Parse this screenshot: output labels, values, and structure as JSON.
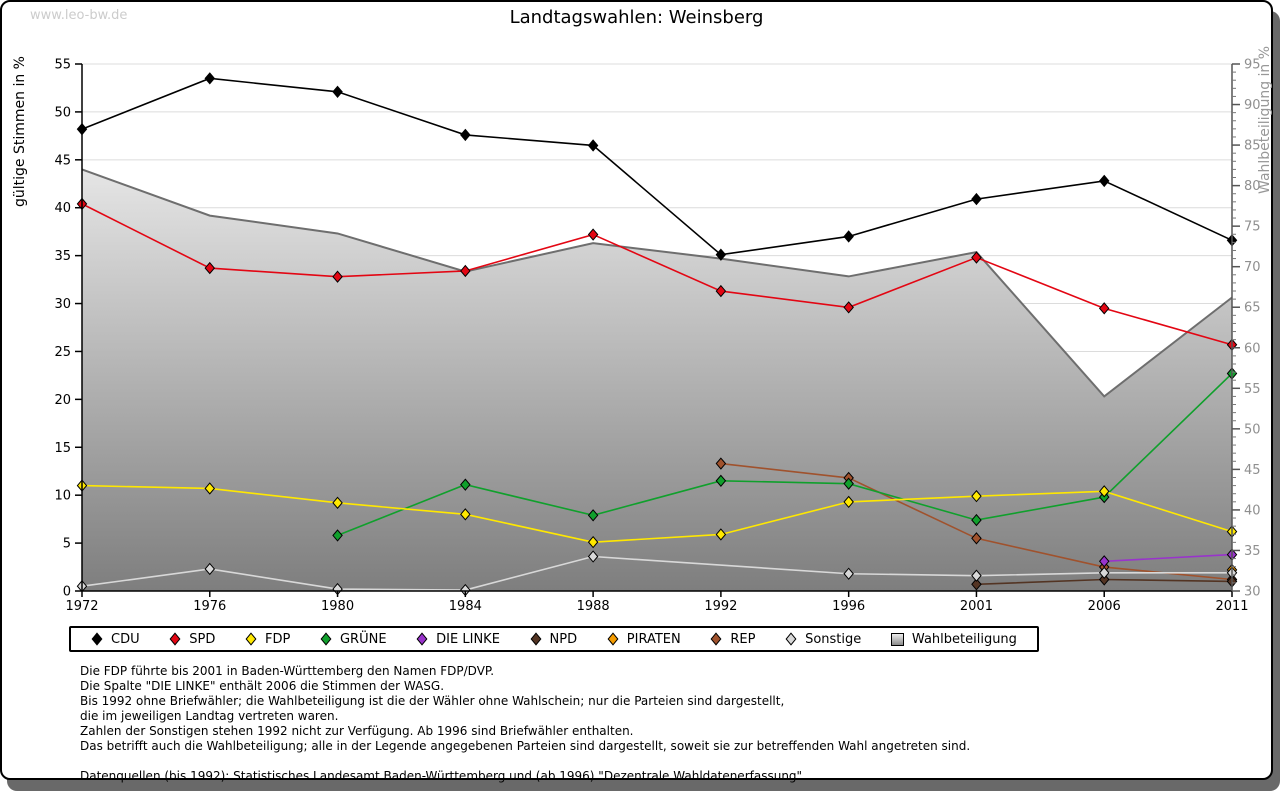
{
  "watermark": "www.leo-bw.de",
  "title": "Landtagswahlen: Weinsberg",
  "chart_data": {
    "type": "line",
    "title": "Landtagswahlen: Weinsberg",
    "categories": [
      "1972",
      "1976",
      "1980",
      "1984",
      "1988",
      "1992",
      "1996",
      "2001",
      "2006",
      "2011"
    ],
    "left_axis": {
      "label": "gültige Stimmen in %",
      "min": 0,
      "max": 55,
      "tick_step": 5
    },
    "right_axis": {
      "label": "Wahlbeteiligung in %",
      "min": 30,
      "max": 95,
      "tick_step": 5,
      "minor_tick_step": 1
    },
    "grid": "horizontal",
    "legend_position": "bottom",
    "series": [
      {
        "name": "CDU",
        "color": "#000000",
        "axis": "left",
        "values": [
          48.2,
          53.5,
          52.1,
          47.6,
          46.5,
          35.1,
          37.0,
          40.9,
          42.8,
          36.6
        ]
      },
      {
        "name": "SPD",
        "color": "#e30613",
        "axis": "left",
        "values": [
          40.4,
          33.7,
          32.8,
          33.4,
          37.2,
          31.3,
          29.6,
          34.8,
          29.5,
          25.7
        ]
      },
      {
        "name": "FDP",
        "color": "#ffe800",
        "axis": "left",
        "values": [
          11.0,
          10.7,
          9.2,
          8.0,
          5.1,
          5.9,
          9.3,
          9.9,
          10.4,
          6.2
        ]
      },
      {
        "name": "GRÜNE",
        "color": "#10a02c",
        "axis": "left",
        "values": [
          null,
          null,
          5.8,
          11.1,
          7.9,
          11.5,
          11.2,
          7.4,
          9.8,
          22.7
        ]
      },
      {
        "name": "DIE LINKE",
        "color": "#9933cc",
        "axis": "left",
        "values": [
          null,
          null,
          null,
          null,
          null,
          null,
          null,
          null,
          3.1,
          3.8
        ]
      },
      {
        "name": "NPD",
        "color": "#533423",
        "axis": "left",
        "values": [
          null,
          null,
          null,
          null,
          null,
          null,
          null,
          0.7,
          1.2,
          1.0
        ]
      },
      {
        "name": "PIRATEN",
        "color": "#f59c00",
        "axis": "left",
        "values": [
          null,
          null,
          null,
          null,
          null,
          null,
          null,
          null,
          null,
          2.2
        ]
      },
      {
        "name": "REP",
        "color": "#a0522d",
        "axis": "left",
        "values": [
          null,
          null,
          null,
          null,
          null,
          13.3,
          11.8,
          5.5,
          2.5,
          1.2
        ]
      },
      {
        "name": "Sonstige",
        "color": "#d8d8d8",
        "axis": "left",
        "values": [
          0.5,
          2.3,
          0.2,
          0.1,
          3.6,
          null,
          1.8,
          1.6,
          1.9,
          1.9
        ]
      }
    ],
    "area_series": {
      "name": "Wahlbeteiligung",
      "axis": "right",
      "values": [
        82.0,
        76.3,
        74.1,
        69.4,
        72.9,
        71.0,
        68.8,
        71.8,
        54.0,
        66.2
      ],
      "line_color": "#6e6e6e",
      "fill_gradient_top": "#ffffff",
      "fill_gradient_bottom": "#7e7e7e"
    }
  },
  "legend": {
    "items": [
      "CDU",
      "SPD",
      "FDP",
      "GRÜNE",
      "DIE LINKE",
      "NPD",
      "PIRATEN",
      "REP",
      "Sonstige",
      "Wahlbeteiligung"
    ]
  },
  "footnotes": [
    "Die FDP führte bis 2001 in Baden-Württemberg den Namen FDP/DVP.",
    "Die Spalte \"DIE LINKE\" enthält 2006 die Stimmen der WASG.",
    "Bis 1992 ohne Briefwähler; die Wahlbeteiligung ist die der Wähler ohne Wahlschein; nur die Parteien sind dargestellt,",
    "die im jeweiligen Landtag vertreten waren.",
    "Zahlen der Sonstigen stehen 1992 nicht zur Verfügung. Ab 1996 sind Briefwähler enthalten.",
    "Das betrifft auch die Wahlbeteiligung; alle in der Legende angegebenen Parteien sind dargestellt, soweit sie zur betreffenden Wahl angetreten sind.",
    "",
    "Datenquellen (bis 1992): Statistisches Landesamt Baden-Württemberg und (ab 1996) \"Dezentrale Wahldatenerfassung\"."
  ]
}
